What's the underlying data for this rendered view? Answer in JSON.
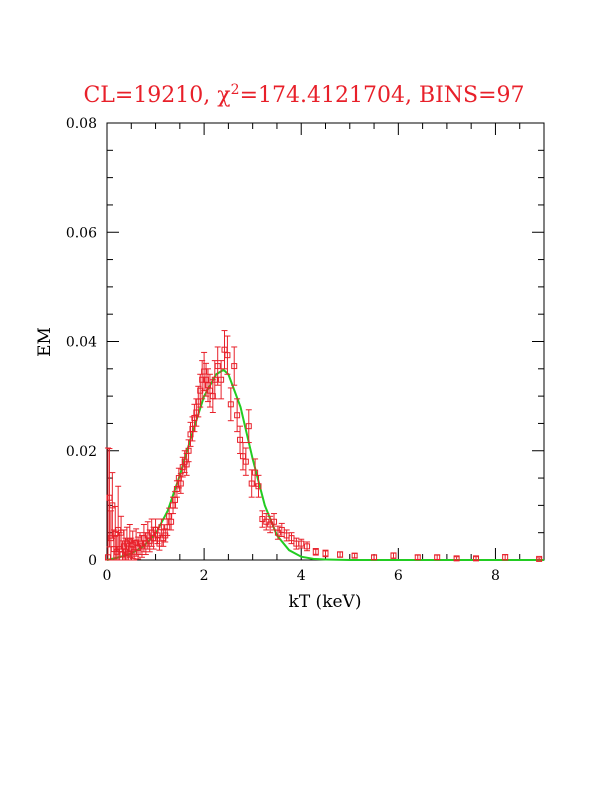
{
  "chart_data": {
    "type": "scatter",
    "title": "CL=19210, χ²=174.4121704, BINS=97",
    "title_parts": {
      "pre": "CL=19210, ",
      "chi": "χ",
      "sup": "2",
      "post": "=174.4121704, BINS=97"
    },
    "xlabel": "kT (keV)",
    "ylabel": "EM",
    "xlim": [
      0,
      9
    ],
    "ylim": [
      0,
      0.08
    ],
    "x_ticks": [
      0,
      2,
      4,
      6,
      8
    ],
    "x_tick_labels": [
      "0",
      "2",
      "4",
      "6",
      "8"
    ],
    "y_ticks": [
      0,
      0.02,
      0.04,
      0.06,
      0.08
    ],
    "y_tick_labels": [
      "0",
      "0.02",
      "0.04",
      "0.06",
      "0.08"
    ],
    "grid": false,
    "colors": {
      "title": "#e8202a",
      "data": "#e8202a",
      "model": "#22cc22",
      "axes": "#000000"
    },
    "series": [
      {
        "kind": "points-with-error-bars",
        "color": "#e8202a",
        "points": [
          [
            0.02,
            0.0005,
            0.02
          ],
          [
            0.05,
            0.0114,
            0.009
          ],
          [
            0.08,
            0.004,
            0.005
          ],
          [
            0.11,
            0.01,
            0.006
          ],
          [
            0.14,
            0.002,
            0.0035
          ],
          [
            0.17,
            0.0048,
            0.005
          ],
          [
            0.2,
            0.0015,
            0.003
          ],
          [
            0.23,
            0.0055,
            0.008
          ],
          [
            0.26,
            0.002,
            0.003
          ],
          [
            0.29,
            0.005,
            0.003
          ],
          [
            0.32,
            0.001,
            0.0025
          ],
          [
            0.35,
            0.0025,
            0.003
          ],
          [
            0.38,
            0.0015,
            0.0025
          ],
          [
            0.41,
            0.003,
            0.003
          ],
          [
            0.44,
            0.0012,
            0.0025
          ],
          [
            0.47,
            0.0035,
            0.003
          ],
          [
            0.5,
            0.002,
            0.002
          ],
          [
            0.53,
            0.0028,
            0.0025
          ],
          [
            0.56,
            0.0015,
            0.002
          ],
          [
            0.6,
            0.0032,
            0.0025
          ],
          [
            0.64,
            0.0022,
            0.002
          ],
          [
            0.68,
            0.003,
            0.002
          ],
          [
            0.72,
            0.0025,
            0.002
          ],
          [
            0.76,
            0.004,
            0.0025
          ],
          [
            0.8,
            0.003,
            0.002
          ],
          [
            0.84,
            0.0045,
            0.0025
          ],
          [
            0.88,
            0.0035,
            0.002
          ],
          [
            0.92,
            0.005,
            0.0025
          ],
          [
            0.96,
            0.004,
            0.002
          ],
          [
            1.0,
            0.0055,
            0.002
          ],
          [
            1.04,
            0.0045,
            0.0015
          ],
          [
            1.08,
            0.003,
            0.0012
          ],
          [
            1.12,
            0.006,
            0.0015
          ],
          [
            1.16,
            0.004,
            0.0015
          ],
          [
            1.2,
            0.0045,
            0.0012
          ],
          [
            1.24,
            0.006,
            0.0015
          ],
          [
            1.28,
            0.008,
            0.0015
          ],
          [
            1.32,
            0.007,
            0.0015
          ],
          [
            1.36,
            0.01,
            0.0015
          ],
          [
            1.4,
            0.011,
            0.0015
          ],
          [
            1.44,
            0.013,
            0.0015
          ],
          [
            1.48,
            0.015,
            0.0018
          ],
          [
            1.52,
            0.014,
            0.0018
          ],
          [
            1.56,
            0.017,
            0.0018
          ],
          [
            1.6,
            0.018,
            0.002
          ],
          [
            1.64,
            0.0175,
            0.002
          ],
          [
            1.68,
            0.02,
            0.002
          ],
          [
            1.72,
            0.023,
            0.0022
          ],
          [
            1.76,
            0.024,
            0.0022
          ],
          [
            1.8,
            0.026,
            0.0025
          ],
          [
            1.84,
            0.027,
            0.0025
          ],
          [
            1.88,
            0.029,
            0.0028
          ],
          [
            1.92,
            0.031,
            0.003
          ],
          [
            1.96,
            0.033,
            0.0035
          ],
          [
            2.0,
            0.0345,
            0.0035
          ],
          [
            2.04,
            0.033,
            0.003
          ],
          [
            2.08,
            0.032,
            0.003
          ],
          [
            2.12,
            0.031,
            0.003
          ],
          [
            2.18,
            0.03,
            0.003
          ],
          [
            2.22,
            0.033,
            0.0035
          ],
          [
            2.28,
            0.0355,
            0.0035
          ],
          [
            2.35,
            0.033,
            0.0035
          ],
          [
            2.42,
            0.0385,
            0.0035
          ],
          [
            2.48,
            0.0375,
            0.0035
          ],
          [
            2.55,
            0.0285,
            0.003
          ],
          [
            2.62,
            0.0355,
            0.0035
          ],
          [
            2.68,
            0.0265,
            0.003
          ],
          [
            2.74,
            0.022,
            0.0025
          ],
          [
            2.8,
            0.019,
            0.0025
          ],
          [
            2.86,
            0.018,
            0.0025
          ],
          [
            2.92,
            0.0245,
            0.003
          ],
          [
            2.98,
            0.014,
            0.0025
          ],
          [
            3.05,
            0.016,
            0.0025
          ],
          [
            3.12,
            0.0135,
            0.002
          ],
          [
            3.2,
            0.0075,
            0.0015
          ],
          [
            3.28,
            0.007,
            0.0015
          ],
          [
            3.36,
            0.0065,
            0.0015
          ],
          [
            3.44,
            0.007,
            0.0015
          ],
          [
            3.52,
            0.005,
            0.0012
          ],
          [
            3.6,
            0.0055,
            0.0012
          ],
          [
            3.7,
            0.0045,
            0.001
          ],
          [
            3.8,
            0.004,
            0.001
          ],
          [
            3.9,
            0.003,
            0.001
          ],
          [
            4.0,
            0.003,
            0.0008
          ],
          [
            4.12,
            0.0025,
            0.0008
          ],
          [
            4.3,
            0.0015,
            0.0006
          ],
          [
            4.5,
            0.0012,
            0.0006
          ],
          [
            4.8,
            0.001,
            0.0005
          ],
          [
            5.1,
            0.0008,
            0.0004
          ],
          [
            5.5,
            0.0005,
            0.0004
          ],
          [
            5.9,
            0.0008,
            0.0005
          ],
          [
            6.4,
            0.0005,
            0.0004
          ],
          [
            6.8,
            0.0005,
            0.0004
          ],
          [
            7.2,
            0.0003,
            0.0003
          ],
          [
            7.6,
            0.0003,
            0.0003
          ],
          [
            8.2,
            0.0005,
            0.0005
          ],
          [
            8.9,
            0.0002,
            0.0002
          ]
        ]
      },
      {
        "kind": "model-curve",
        "color": "#22cc22",
        "x": [
          0.0,
          0.25,
          0.5,
          0.75,
          1.0,
          1.25,
          1.5,
          1.75,
          2.0,
          2.25,
          2.4,
          2.5,
          2.75,
          3.0,
          3.25,
          3.5,
          3.75,
          4.0,
          4.25,
          4.5,
          5.0,
          6.0,
          7.0,
          8.0,
          9.0
        ],
        "y": [
          0.0,
          0.0005,
          0.0012,
          0.0025,
          0.0048,
          0.009,
          0.0155,
          0.023,
          0.03,
          0.034,
          0.0348,
          0.034,
          0.028,
          0.0185,
          0.01,
          0.0045,
          0.0018,
          0.0006,
          0.0002,
          0.0001,
          0.0,
          0.0,
          0.0,
          0.0,
          0.0
        ]
      }
    ]
  }
}
